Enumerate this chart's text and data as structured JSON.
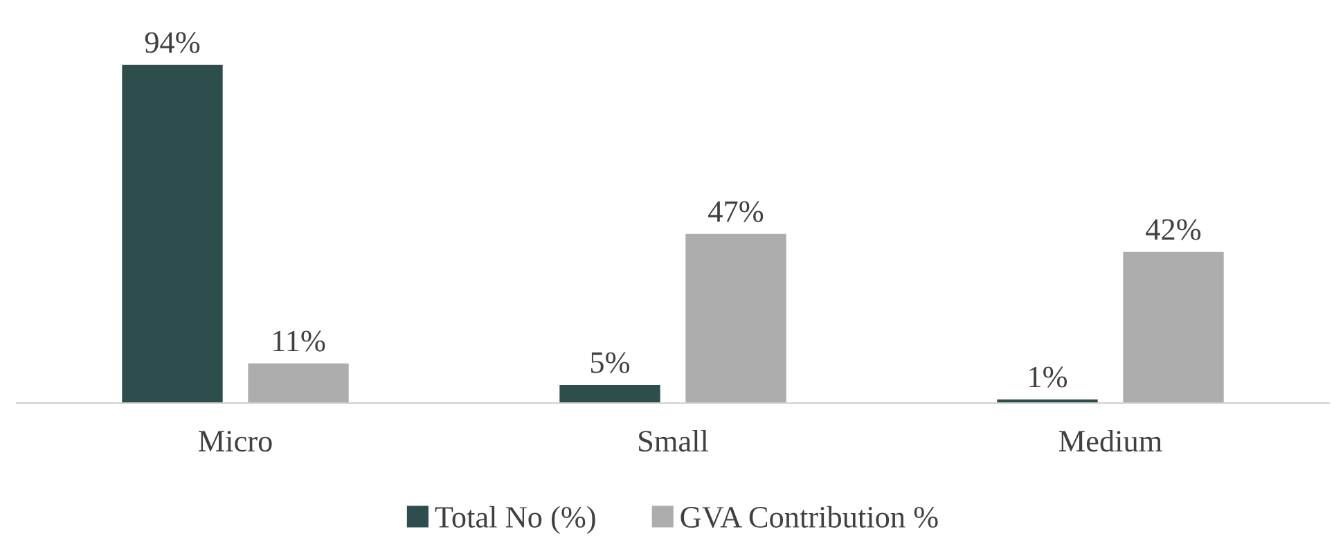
{
  "chart_data": {
    "type": "bar",
    "categories": [
      "Micro",
      "Small",
      "Medium"
    ],
    "series": [
      {
        "name": "Total No (%)",
        "color": "#2e4d4d",
        "values": [
          94,
          5,
          1
        ],
        "value_labels": [
          "94%",
          "5%",
          "1%"
        ]
      },
      {
        "name": "GVA Contribution %",
        "color": "#adadad",
        "values": [
          11,
          47,
          42
        ],
        "value_labels": [
          "11%",
          "47%",
          "42%"
        ]
      }
    ],
    "legend": "bottom"
  }
}
